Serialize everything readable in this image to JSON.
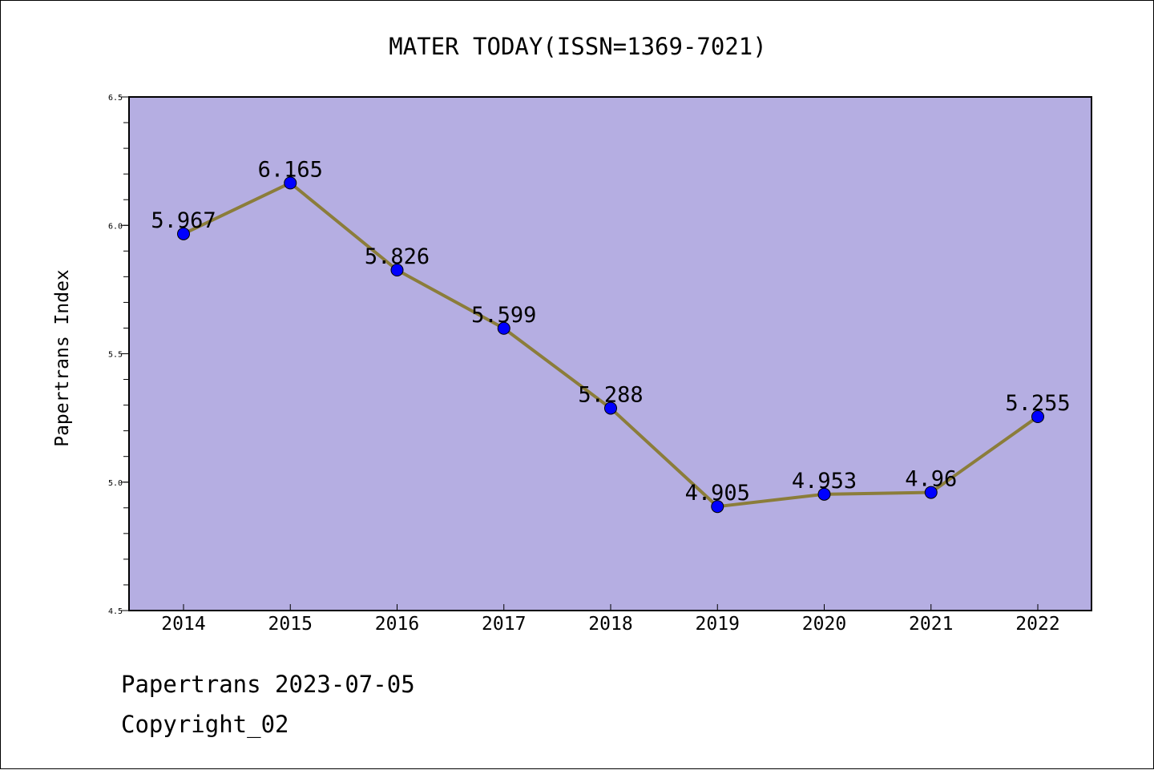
{
  "chart_data": {
    "type": "line",
    "title": "MATER TODAY(ISSN=1369-7021)",
    "xlabel": "",
    "ylabel": "Papertrans Index",
    "categories": [
      "2014",
      "2015",
      "2016",
      "2017",
      "2018",
      "2019",
      "2020",
      "2021",
      "2022"
    ],
    "series": [
      {
        "values": [
          5.967,
          6.165,
          5.826,
          5.599,
          5.288,
          4.905,
          4.953,
          4.96,
          5.255
        ],
        "labels": [
          "5.967",
          "6.165",
          "5.826",
          "5.599",
          "5.288",
          "4.905",
          "4.953",
          "4.96",
          "5.255"
        ]
      }
    ],
    "ylim": [
      4.5,
      6.5
    ],
    "yticks": [
      "4.5",
      "5.0",
      "5.5",
      "6.0",
      "6.5"
    ],
    "grid": false,
    "colors": {
      "plot_background": "#b5aee2",
      "line": "#8b7d3a",
      "marker": "#0000ff"
    }
  },
  "footer": {
    "line1": "Papertrans 2023-07-05",
    "line2": "Copyright_02"
  }
}
